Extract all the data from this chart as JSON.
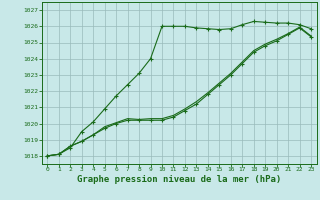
{
  "background_color": "#c8e8e8",
  "grid_color": "#99bbbb",
  "line_color": "#1a6b1a",
  "marker_color": "#1a6b1a",
  "xlabel": "Graphe pression niveau de la mer (hPa)",
  "xlabel_fontsize": 6.5,
  "ylim": [
    1017.5,
    1027.5
  ],
  "xlim": [
    -0.5,
    23.5
  ],
  "yticks": [
    1018,
    1019,
    1020,
    1021,
    1022,
    1023,
    1024,
    1025,
    1026,
    1027
  ],
  "xticks": [
    0,
    1,
    2,
    3,
    4,
    5,
    6,
    7,
    8,
    9,
    10,
    11,
    12,
    13,
    14,
    15,
    16,
    17,
    18,
    19,
    20,
    21,
    22,
    23
  ],
  "line1_x": [
    0,
    1,
    2,
    3,
    4,
    5,
    6,
    7,
    8,
    9,
    10,
    11,
    12,
    13,
    14,
    15,
    16,
    17,
    18,
    19,
    20,
    21,
    22,
    23
  ],
  "line1_y": [
    1018.0,
    1018.1,
    1018.5,
    1019.5,
    1020.1,
    1020.9,
    1021.7,
    1022.4,
    1023.1,
    1024.0,
    1026.0,
    1026.0,
    1026.0,
    1025.9,
    1025.85,
    1025.8,
    1025.85,
    1026.1,
    1026.3,
    1026.25,
    1026.2,
    1026.2,
    1026.1,
    1025.85
  ],
  "line2_x": [
    0,
    1,
    2,
    3,
    4,
    5,
    6,
    7,
    8,
    9,
    10,
    11,
    12,
    13,
    14,
    15,
    16,
    17,
    18,
    19,
    20,
    21,
    22,
    23
  ],
  "line2_y": [
    1018.0,
    1018.1,
    1018.6,
    1018.9,
    1019.3,
    1019.7,
    1020.0,
    1020.2,
    1020.2,
    1020.2,
    1020.2,
    1020.4,
    1020.8,
    1021.2,
    1021.8,
    1022.4,
    1023.0,
    1023.7,
    1024.4,
    1024.8,
    1025.1,
    1025.5,
    1025.9,
    1025.35
  ],
  "line3_x": [
    0,
    1,
    2,
    3,
    4,
    5,
    6,
    7,
    8,
    9,
    10,
    11,
    12,
    13,
    14,
    15,
    16,
    17,
    18,
    19,
    20,
    21,
    22,
    23
  ],
  "line3_y": [
    1018.0,
    1018.1,
    1018.6,
    1018.9,
    1019.3,
    1019.8,
    1020.05,
    1020.3,
    1020.25,
    1020.3,
    1020.3,
    1020.5,
    1020.9,
    1021.35,
    1021.9,
    1022.5,
    1023.1,
    1023.8,
    1024.5,
    1024.9,
    1025.2,
    1025.55,
    1025.95,
    1025.4
  ]
}
